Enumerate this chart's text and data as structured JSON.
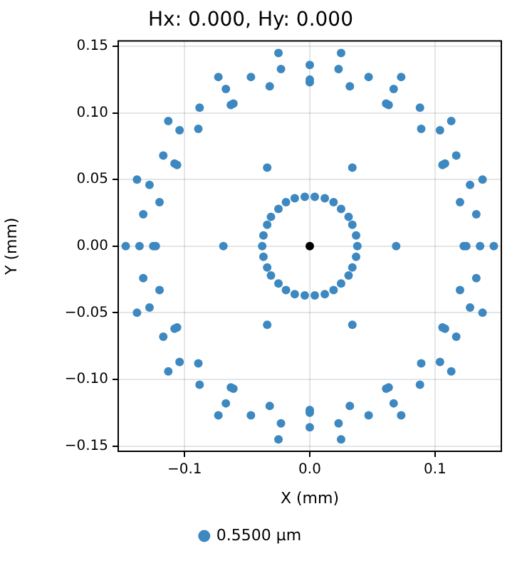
{
  "chart_data": {
    "type": "scatter",
    "title": "Hx: 0.000, Hy: 0.000",
    "xlabel": "X (mm)",
    "ylabel": "Y (mm)",
    "series": [
      {
        "name": "0.5500 µm",
        "color": "#3d88c0",
        "x": [
          0.025,
          0.023,
          0.047,
          0.073,
          0.032,
          0.067,
          0.061,
          0.063,
          0.088,
          0.113,
          0.089,
          0.104,
          0.117,
          0.106,
          0.108,
          0.034,
          0.138,
          0.128,
          0.12,
          0.133,
          0.004,
          0.012,
          0.019,
          0.025,
          0.031,
          0.034,
          0.037,
          -0.025,
          -0.023,
          -0.047,
          -0.073,
          -0.032,
          -0.067,
          -0.061,
          -0.063,
          -0.088,
          -0.113,
          -0.089,
          -0.104,
          -0.117,
          -0.106,
          -0.108,
          -0.034,
          -0.138,
          -0.128,
          -0.12,
          -0.133,
          -0.004,
          -0.012,
          -0.019,
          -0.025,
          -0.031,
          -0.034,
          -0.037,
          -0.025,
          -0.023,
          -0.047,
          -0.073,
          -0.032,
          -0.067,
          -0.061,
          -0.063,
          -0.088,
          -0.113,
          -0.089,
          -0.104,
          -0.117,
          -0.106,
          -0.108,
          -0.034,
          -0.138,
          -0.128,
          -0.12,
          -0.133,
          -0.004,
          -0.012,
          -0.019,
          -0.025,
          -0.031,
          -0.034,
          -0.037,
          0.025,
          0.023,
          0.047,
          0.073,
          0.032,
          0.067,
          0.061,
          0.063,
          0.088,
          0.113,
          0.089,
          0.104,
          0.117,
          0.106,
          0.108,
          0.034,
          0.138,
          0.128,
          0.12,
          0.133,
          0.004,
          0.012,
          0.019,
          0.025,
          0.031,
          0.034,
          0.037,
          0.038,
          0.069,
          0.123,
          0.125,
          0.136,
          0.147,
          -0.038,
          -0.069,
          -0.123,
          -0.125,
          -0.136,
          -0.147,
          0,
          0,
          0,
          0,
          0,
          0
        ],
        "values": [
          0.145,
          0.133,
          0.127,
          0.127,
          0.12,
          0.118,
          0.107,
          0.106,
          0.104,
          0.094,
          0.088,
          0.087,
          0.068,
          0.061,
          0.062,
          0.059,
          0.05,
          0.046,
          0.033,
          0.024,
          0.037,
          0.036,
          0.033,
          0.028,
          0.022,
          0.016,
          0.008,
          0.145,
          0.133,
          0.127,
          0.127,
          0.12,
          0.118,
          0.107,
          0.106,
          0.104,
          0.094,
          0.088,
          0.087,
          0.068,
          0.061,
          0.062,
          0.059,
          0.05,
          0.046,
          0.033,
          0.024,
          0.037,
          0.036,
          0.033,
          0.028,
          0.022,
          0.016,
          0.008,
          -0.145,
          -0.133,
          -0.127,
          -0.127,
          -0.12,
          -0.118,
          -0.107,
          -0.106,
          -0.104,
          -0.094,
          -0.088,
          -0.087,
          -0.068,
          -0.061,
          -0.062,
          -0.059,
          -0.05,
          -0.046,
          -0.033,
          -0.024,
          -0.037,
          -0.036,
          -0.033,
          -0.028,
          -0.022,
          -0.016,
          -0.008,
          -0.145,
          -0.133,
          -0.127,
          -0.127,
          -0.12,
          -0.118,
          -0.107,
          -0.106,
          -0.104,
          -0.094,
          -0.088,
          -0.087,
          -0.068,
          -0.061,
          -0.062,
          -0.059,
          -0.05,
          -0.046,
          -0.033,
          -0.024,
          -0.037,
          -0.036,
          -0.033,
          -0.028,
          -0.022,
          -0.016,
          -0.008,
          0,
          0,
          0,
          0,
          0,
          0,
          0,
          0,
          0,
          0,
          0,
          0,
          0.136,
          0.123,
          0.125,
          -0.136,
          -0.123,
          -0.125
        ]
      },
      {
        "color": "#000000",
        "x": [
          0
        ],
        "values": [
          0
        ]
      }
    ],
    "xlim": [
      -0.153,
      0.153
    ],
    "ylim": [
      -0.154,
      0.154
    ],
    "xticks": [
      {
        "value": -0.1,
        "label": "−0.1"
      },
      {
        "value": 0,
        "label": "0.0"
      },
      0.1
    ],
    "yticks": [
      {
        "value": -0.15,
        "label": "−0.15"
      },
      {
        "value": -0.1,
        "label": "−0.10"
      },
      {
        "value": -0.05,
        "label": "−0.05"
      },
      {
        "value": 0,
        "label": "0.00"
      },
      0.05,
      {
        "value": 0.1,
        "label": "0.10"
      },
      0.15
    ],
    "grid": true,
    "legend": "bottom",
    "marker": "circle"
  }
}
